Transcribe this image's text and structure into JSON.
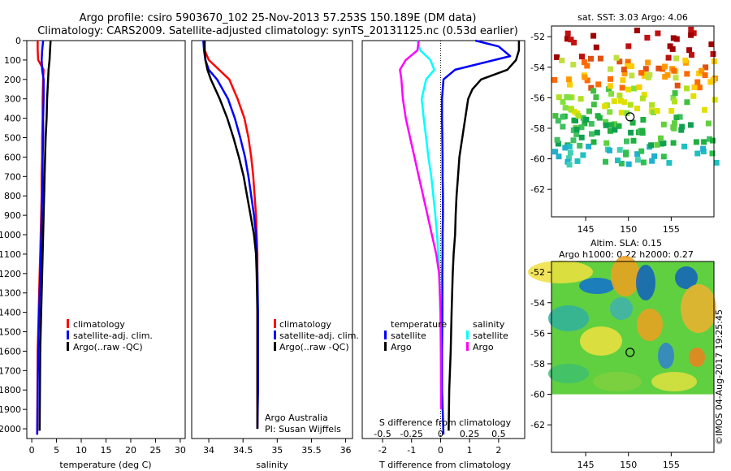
{
  "header": {
    "line1": "Argo profile: csiro 5903670_102 25-Nov-2013 57.253S 150.189E (DM data)",
    "line2": "Climatology: CARS2009. Satellite-adjusted climatology: synTS_20131125.nc (0.53d earlier)"
  },
  "side_label": "©IMOS 04-Aug-2017 19:25:45",
  "colors": {
    "climatology": "#ff0000",
    "satellite": "#0000ff",
    "argo": "#000000",
    "sat_salinity": "#00ffff",
    "argo_salinity": "#ff00ff"
  },
  "chart_data": [
    {
      "type": "line",
      "name": "temperature-panel",
      "xlabel": "temperature (deg C)",
      "ylabel": "",
      "xlim": [
        -1,
        31
      ],
      "ylim": [
        2050,
        0
      ],
      "xticks": [
        "0",
        "5",
        "10",
        "15",
        "20",
        "25",
        "30"
      ],
      "yticks": [
        "0",
        "100",
        "200",
        "300",
        "400",
        "500",
        "600",
        "700",
        "800",
        "900",
        "1000",
        "1100",
        "1200",
        "1300",
        "1400",
        "1500",
        "1600",
        "1700",
        "1800",
        "1900",
        "2000"
      ],
      "legend": [
        "climatology",
        "satellite-adj. clim.",
        "Argo(..raw -QC)"
      ],
      "series": [
        {
          "name": "climatology",
          "color": "#ff0000",
          "x": [
            1.2,
            1.2,
            1.3,
            2.4,
            2.3,
            2.2,
            2.2,
            2.1,
            2.1,
            2.0,
            2.0,
            1.9,
            1.8,
            1.7,
            1.6,
            1.5,
            1.4,
            1.3,
            1.2,
            1.1
          ],
          "y": [
            0,
            50,
            100,
            150,
            200,
            300,
            400,
            500,
            600,
            700,
            800,
            900,
            1000,
            1100,
            1200,
            1300,
            1400,
            1500,
            1600,
            2030
          ]
        },
        {
          "name": "satellite-adj. clim.",
          "color": "#0000ff",
          "x": [
            2.3,
            2.1,
            2.0,
            2.1,
            2.4,
            2.4,
            2.3,
            2.3,
            2.2,
            2.2,
            2.1,
            2.0,
            1.9,
            1.8,
            1.7,
            1.6,
            1.5,
            1.4,
            1.3,
            1.1
          ],
          "y": [
            0,
            50,
            100,
            150,
            200,
            300,
            400,
            500,
            600,
            700,
            800,
            900,
            1000,
            1100,
            1200,
            1300,
            1400,
            1500,
            1600,
            2030
          ]
        },
        {
          "name": "Argo(..raw -QC)",
          "color": "#000000",
          "x": [
            3.8,
            3.7,
            3.6,
            3.4,
            3.3,
            3.1,
            3.0,
            2.8,
            2.7,
            2.6,
            2.5,
            2.4,
            2.3,
            2.2,
            2.1,
            2.0,
            1.9,
            1.8,
            1.7,
            1.6
          ],
          "y": [
            0,
            50,
            100,
            150,
            200,
            300,
            400,
            500,
            600,
            700,
            800,
            900,
            1000,
            1100,
            1200,
            1300,
            1400,
            1500,
            1600,
            2010
          ]
        }
      ]
    },
    {
      "type": "line",
      "name": "salinity-panel",
      "xlabel": "salinity",
      "xlim": [
        33.75,
        36.1
      ],
      "ylim": [
        2050,
        0
      ],
      "xticks": [
        "34",
        "34.5",
        "35",
        "35.5",
        "36"
      ],
      "legend": [
        "climatology",
        "satellite-adj. clim.",
        "Argo(..raw -QC)"
      ],
      "annotation": [
        "Argo Australia",
        "PI: Susan Wijffels"
      ],
      "series": [
        {
          "name": "climatology",
          "color": "#ff0000",
          "x": [
            33.93,
            33.94,
            34.0,
            34.15,
            34.3,
            34.42,
            34.52,
            34.58,
            34.62,
            34.65,
            34.67,
            34.69,
            34.7,
            34.71,
            34.71,
            34.71,
            34.71,
            34.71,
            34.71
          ],
          "y": [
            0,
            50,
            100,
            150,
            200,
            300,
            400,
            500,
            600,
            700,
            800,
            900,
            1000,
            1100,
            1200,
            1400,
            1600,
            1800,
            2000
          ]
        },
        {
          "name": "satellite-adj. clim.",
          "color": "#0000ff",
          "x": [
            33.92,
            33.93,
            33.95,
            34.0,
            34.12,
            34.28,
            34.38,
            34.46,
            34.53,
            34.58,
            34.62,
            34.66,
            34.69,
            34.7,
            34.71,
            34.72,
            34.72,
            34.72,
            34.71
          ],
          "y": [
            0,
            50,
            100,
            150,
            200,
            300,
            400,
            500,
            600,
            700,
            800,
            900,
            1000,
            1100,
            1200,
            1400,
            1600,
            1800,
            2000
          ]
        },
        {
          "name": "Argo(..raw -QC)",
          "color": "#000000",
          "x": [
            33.94,
            33.94,
            33.95,
            33.98,
            34.03,
            34.16,
            34.27,
            34.36,
            34.44,
            34.51,
            34.56,
            34.61,
            34.66,
            34.69,
            34.7,
            34.71,
            34.71,
            34.71,
            34.71
          ],
          "y": [
            0,
            50,
            100,
            150,
            200,
            300,
            400,
            500,
            600,
            700,
            800,
            900,
            1000,
            1100,
            1200,
            1400,
            1600,
            1800,
            2000
          ]
        }
      ]
    },
    {
      "type": "line",
      "name": "difference-panel",
      "xlabel": "T difference from climatology",
      "top_label": "S difference from climatology",
      "xlim": [
        -2.7,
        2.9
      ],
      "ylim": [
        2050,
        0
      ],
      "xticks_bottom": [
        "-2",
        "-1",
        "0",
        "1",
        "2"
      ],
      "xticks_top": [
        "-0.5",
        "-0.25",
        "0",
        "0.25",
        "0.5"
      ],
      "legend_left_title": "temperature",
      "legend_right_title": "salinity",
      "legend": [
        "satellite",
        "Argo",
        "satellite",
        "Argo"
      ],
      "series": [
        {
          "name": "T satellite",
          "color": "#0000ff",
          "x": [
            1.2,
            2.0,
            2.4,
            0.5,
            0.1,
            0.05,
            0.05,
            0.06,
            0.07,
            0.07,
            0.08,
            0.08,
            0.07,
            0.07,
            0.06,
            0.06,
            0.05,
            0.05,
            0.1
          ],
          "y": [
            0,
            30,
            80,
            150,
            200,
            300,
            400,
            500,
            600,
            700,
            800,
            900,
            1000,
            1100,
            1200,
            1400,
            1600,
            1800,
            2030
          ]
        },
        {
          "name": "T Argo",
          "color": "#000000",
          "x": [
            2.7,
            2.7,
            2.6,
            2.3,
            1.4,
            1.1,
            0.95,
            0.85,
            0.75,
            0.65,
            0.6,
            0.55,
            0.52,
            0.5,
            0.45,
            0.42,
            0.38,
            0.35,
            0.3,
            0.28
          ],
          "y": [
            0,
            50,
            100,
            150,
            200,
            250,
            300,
            400,
            500,
            600,
            700,
            800,
            900,
            1000,
            1100,
            1200,
            1400,
            1600,
            1800,
            2010
          ]
        },
        {
          "name": "S satellite",
          "color": "#00ffff",
          "x": [
            -0.8,
            -0.7,
            -0.35,
            -0.22,
            -0.5,
            -0.65,
            -0.58,
            -0.5,
            -0.42,
            -0.32,
            -0.25,
            -0.18,
            -0.12,
            -0.08,
            -0.04,
            -0.01,
            0.0,
            0.02
          ],
          "y": [
            0,
            50,
            100,
            150,
            200,
            300,
            400,
            500,
            600,
            700,
            800,
            900,
            1000,
            1100,
            1200,
            1400,
            1600,
            1900
          ]
        },
        {
          "name": "S Argo",
          "color": "#ff00ff",
          "x": [
            -0.75,
            -0.8,
            -1.2,
            -1.4,
            -1.35,
            -1.3,
            -1.2,
            -1.05,
            -0.9,
            -0.75,
            -0.6,
            -0.45,
            -0.3,
            -0.15,
            -0.05,
            0.0,
            0.02,
            0.02
          ],
          "y": [
            0,
            50,
            100,
            150,
            200,
            300,
            400,
            500,
            600,
            700,
            800,
            900,
            1000,
            1100,
            1200,
            1400,
            1600,
            1900
          ]
        }
      ]
    },
    {
      "type": "scatter",
      "name": "sst-map",
      "title": "sat. SST: 3.03 Argo: 4.06",
      "xlim": [
        141,
        160
      ],
      "ylim": [
        -63.8,
        -51.3
      ],
      "xticks": [
        "145",
        "150",
        "155"
      ],
      "yticks": [
        "-52",
        "-54",
        "-56",
        "-58",
        "-60",
        "-62"
      ],
      "profile_marker": {
        "lon": 150.19,
        "lat": -57.25
      }
    },
    {
      "type": "heatmap",
      "name": "sla-map",
      "title_line1": "Altim. SLA: 0.15",
      "title_line2": "Argo h1000: 0.22 h2000: 0.27",
      "xlim": [
        141,
        160
      ],
      "ylim": [
        -63.8,
        -51.3
      ],
      "xticks": [
        "145",
        "150",
        "155"
      ],
      "yticks": [
        "-52",
        "-54",
        "-56",
        "-58",
        "-60",
        "-62"
      ],
      "field_extent": {
        "lon": [
          141,
          160
        ],
        "lat": [
          -60,
          -51.3
        ]
      },
      "profile_marker": {
        "lon": 150.19,
        "lat": -57.25
      }
    }
  ]
}
